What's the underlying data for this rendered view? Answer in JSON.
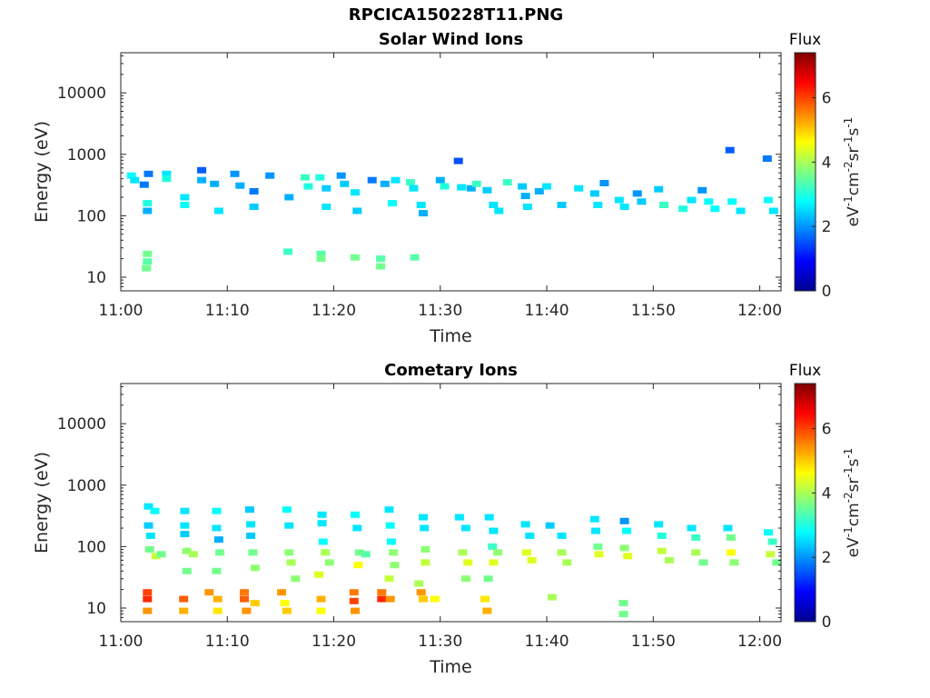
{
  "figure": {
    "title": "RPCICA150228T11.PNG"
  },
  "colormap": [
    "#00008f",
    "#0000ff",
    "#0080ff",
    "#00ffff",
    "#80ff80",
    "#ffff00",
    "#ff8000",
    "#ff0000",
    "#800000"
  ],
  "chart_data": [
    {
      "type": "heatmap",
      "title": "Solar Wind Ions",
      "xlabel": "Time",
      "ylabel": "Energy (eV)",
      "x_ticks": [
        "11:00",
        "11:10",
        "11:20",
        "11:30",
        "11:40",
        "11:50",
        "12:00"
      ],
      "y_ticks": [
        "10",
        "100",
        "1000",
        "10000"
      ],
      "y_scale": "log",
      "y_range": [
        6,
        45000
      ],
      "x_range_minutes": [
        0,
        62
      ],
      "colorbar": {
        "title": "Flux",
        "label": "eV-1cm-2sr-1s-1",
        "ticks": [
          "0",
          "2",
          "4",
          "6"
        ],
        "range": [
          0,
          7.4
        ]
      },
      "cells": [
        [
          1.0,
          450,
          2.8
        ],
        [
          1.3,
          380,
          2.6
        ],
        [
          2.2,
          320,
          1.8
        ],
        [
          2.5,
          160,
          3.0
        ],
        [
          2.5,
          120,
          2.2
        ],
        [
          2.6,
          480,
          1.8
        ],
        [
          4.3,
          480,
          2.6
        ],
        [
          4.3,
          400,
          3.0
        ],
        [
          6.0,
          200,
          2.6
        ],
        [
          6.0,
          150,
          2.8
        ],
        [
          7.6,
          550,
          1.6
        ],
        [
          7.6,
          380,
          2.2
        ],
        [
          8.8,
          330,
          2.2
        ],
        [
          9.2,
          120,
          2.6
        ],
        [
          10.7,
          480,
          2.0
        ],
        [
          11.2,
          310,
          2.2
        ],
        [
          12.5,
          250,
          1.8
        ],
        [
          12.5,
          140,
          2.4
        ],
        [
          14.0,
          450,
          2.0
        ],
        [
          15.8,
          200,
          2.2
        ],
        [
          17.3,
          420,
          3.2
        ],
        [
          17.6,
          300,
          3.0
        ],
        [
          18.7,
          420,
          3.0
        ],
        [
          19.3,
          280,
          2.4
        ],
        [
          19.3,
          140,
          2.6
        ],
        [
          20.7,
          450,
          2.0
        ],
        [
          21.0,
          330,
          2.4
        ],
        [
          22.0,
          240,
          2.6
        ],
        [
          22.2,
          120,
          2.4
        ],
        [
          23.6,
          380,
          1.8
        ],
        [
          24.8,
          330,
          2.2
        ],
        [
          25.5,
          160,
          2.8
        ],
        [
          25.8,
          380,
          2.6
        ],
        [
          27.2,
          350,
          3.2
        ],
        [
          27.5,
          280,
          2.6
        ],
        [
          28.2,
          150,
          2.6
        ],
        [
          28.4,
          110,
          2.2
        ],
        [
          30.0,
          380,
          2.2
        ],
        [
          30.4,
          300,
          3.0
        ],
        [
          31.7,
          780,
          1.5
        ],
        [
          32.0,
          290,
          2.6
        ],
        [
          32.9,
          280,
          2.2
        ],
        [
          33.4,
          330,
          3.2
        ],
        [
          34.4,
          260,
          2.4
        ],
        [
          35.0,
          150,
          2.6
        ],
        [
          35.5,
          120,
          2.6
        ],
        [
          36.3,
          350,
          3.2
        ],
        [
          37.7,
          300,
          2.4
        ],
        [
          38.0,
          210,
          2.2
        ],
        [
          38.2,
          140,
          2.6
        ],
        [
          39.3,
          250,
          2.2
        ],
        [
          40.0,
          300,
          2.6
        ],
        [
          41.4,
          150,
          2.4
        ],
        [
          43.0,
          280,
          2.6
        ],
        [
          44.5,
          230,
          2.4
        ],
        [
          44.8,
          150,
          2.6
        ],
        [
          45.4,
          340,
          2.0
        ],
        [
          46.8,
          180,
          2.6
        ],
        [
          47.3,
          140,
          2.6
        ],
        [
          48.5,
          230,
          2.0
        ],
        [
          48.9,
          170,
          2.4
        ],
        [
          50.5,
          270,
          2.4
        ],
        [
          51.0,
          150,
          3.2
        ],
        [
          52.8,
          130,
          3.0
        ],
        [
          53.6,
          180,
          2.6
        ],
        [
          54.6,
          260,
          2.0
        ],
        [
          55.2,
          170,
          2.8
        ],
        [
          55.8,
          130,
          2.8
        ],
        [
          57.2,
          1170,
          1.6
        ],
        [
          57.4,
          170,
          2.8
        ],
        [
          58.2,
          120,
          2.6
        ],
        [
          60.7,
          850,
          1.8
        ],
        [
          60.8,
          180,
          2.8
        ],
        [
          61.3,
          120,
          2.6
        ],
        [
          2.5,
          24,
          3.6
        ],
        [
          2.5,
          18,
          3.4
        ],
        [
          2.4,
          14,
          3.6
        ],
        [
          15.7,
          26,
          3.2
        ],
        [
          18.8,
          24,
          3.4
        ],
        [
          18.8,
          20,
          3.6
        ],
        [
          22.0,
          21,
          3.6
        ],
        [
          24.4,
          20,
          3.4
        ],
        [
          24.4,
          15,
          3.6
        ],
        [
          27.6,
          21,
          3.4
        ]
      ]
    },
    {
      "type": "heatmap",
      "title": "Cometary Ions",
      "xlabel": "Time",
      "ylabel": "Energy (eV)",
      "x_ticks": [
        "11:00",
        "11:10",
        "11:20",
        "11:30",
        "11:40",
        "11:50",
        "12:00"
      ],
      "y_ticks": [
        "10",
        "100",
        "1000",
        "10000"
      ],
      "y_scale": "log",
      "y_range": [
        6,
        45000
      ],
      "x_range_minutes": [
        0,
        62
      ],
      "colorbar": {
        "title": "Flux",
        "label": "eV-1cm-2sr-1s-1",
        "ticks": [
          "0",
          "2",
          "4",
          "6"
        ],
        "range": [
          0,
          7.4
        ]
      },
      "cells": [
        [
          2.6,
          450,
          2.6
        ],
        [
          3.2,
          380,
          2.8
        ],
        [
          2.6,
          220,
          2.4
        ],
        [
          2.8,
          150,
          2.6
        ],
        [
          2.7,
          90,
          3.6
        ],
        [
          3.3,
          70,
          4.2
        ],
        [
          3.8,
          75,
          3.6
        ],
        [
          6.0,
          380,
          2.6
        ],
        [
          6.0,
          220,
          2.6
        ],
        [
          6.0,
          160,
          2.4
        ],
        [
          6.2,
          85,
          3.8
        ],
        [
          6.8,
          75,
          4.0
        ],
        [
          6.2,
          40,
          3.6
        ],
        [
          9.0,
          380,
          2.8
        ],
        [
          9.0,
          200,
          2.6
        ],
        [
          9.2,
          130,
          2.2
        ],
        [
          9.3,
          80,
          3.6
        ],
        [
          9.0,
          40,
          3.6
        ],
        [
          12.1,
          400,
          2.4
        ],
        [
          12.2,
          230,
          2.6
        ],
        [
          12.2,
          150,
          2.4
        ],
        [
          12.4,
          80,
          3.6
        ],
        [
          12.6,
          45,
          3.8
        ],
        [
          15.6,
          400,
          2.8
        ],
        [
          15.8,
          220,
          2.6
        ],
        [
          15.8,
          80,
          3.8
        ],
        [
          16.0,
          55,
          4.0
        ],
        [
          16.4,
          30,
          3.8
        ],
        [
          18.9,
          330,
          2.6
        ],
        [
          18.9,
          240,
          2.6
        ],
        [
          19.0,
          120,
          2.8
        ],
        [
          19.2,
          80,
          4.0
        ],
        [
          19.6,
          55,
          3.8
        ],
        [
          18.6,
          35,
          4.4
        ],
        [
          22.0,
          330,
          2.8
        ],
        [
          22.2,
          200,
          2.6
        ],
        [
          22.4,
          80,
          3.6
        ],
        [
          22.3,
          50,
          4.6
        ],
        [
          23.0,
          75,
          3.4
        ],
        [
          25.2,
          400,
          2.6
        ],
        [
          25.3,
          220,
          2.8
        ],
        [
          25.4,
          120,
          2.8
        ],
        [
          25.6,
          80,
          3.8
        ],
        [
          25.7,
          50,
          3.8
        ],
        [
          25.2,
          30,
          4.2
        ],
        [
          28.4,
          300,
          2.6
        ],
        [
          28.5,
          200,
          2.6
        ],
        [
          28.6,
          90,
          3.8
        ],
        [
          28.6,
          55,
          4.2
        ],
        [
          28.0,
          25,
          4.0
        ],
        [
          31.8,
          300,
          2.6
        ],
        [
          32.4,
          200,
          2.6
        ],
        [
          32.1,
          80,
          4.0
        ],
        [
          32.6,
          55,
          4.4
        ],
        [
          32.4,
          30,
          3.8
        ],
        [
          34.6,
          300,
          2.6
        ],
        [
          35.0,
          180,
          2.6
        ],
        [
          34.9,
          100,
          3.2
        ],
        [
          35.4,
          80,
          3.8
        ],
        [
          35.0,
          55,
          4.4
        ],
        [
          34.5,
          30,
          3.6
        ],
        [
          38.0,
          230,
          2.6
        ],
        [
          38.4,
          150,
          2.6
        ],
        [
          38.1,
          80,
          4.4
        ],
        [
          38.6,
          60,
          4.4
        ],
        [
          40.3,
          220,
          2.4
        ],
        [
          41.4,
          150,
          2.6
        ],
        [
          41.4,
          80,
          4.0
        ],
        [
          41.9,
          55,
          4.0
        ],
        [
          44.5,
          280,
          2.6
        ],
        [
          44.6,
          180,
          2.6
        ],
        [
          44.8,
          100,
          3.6
        ],
        [
          44.9,
          75,
          4.4
        ],
        [
          47.3,
          260,
          2.0
        ],
        [
          47.5,
          180,
          2.8
        ],
        [
          47.3,
          95,
          3.8
        ],
        [
          47.6,
          70,
          4.4
        ],
        [
          50.5,
          230,
          2.6
        ],
        [
          50.8,
          150,
          3.0
        ],
        [
          50.8,
          85,
          4.2
        ],
        [
          51.5,
          60,
          4.0
        ],
        [
          53.6,
          200,
          2.6
        ],
        [
          54.0,
          140,
          3.2
        ],
        [
          54.0,
          80,
          4.0
        ],
        [
          54.7,
          55,
          3.6
        ],
        [
          57.0,
          200,
          2.6
        ],
        [
          57.3,
          140,
          3.6
        ],
        [
          57.3,
          80,
          4.6
        ],
        [
          57.6,
          55,
          3.8
        ],
        [
          60.8,
          170,
          2.8
        ],
        [
          61.2,
          120,
          3.2
        ],
        [
          61.0,
          75,
          4.2
        ],
        [
          61.6,
          55,
          3.6
        ],
        [
          2.5,
          18,
          6.0
        ],
        [
          2.5,
          14,
          6.2
        ],
        [
          2.5,
          9,
          5.4
        ],
        [
          5.9,
          14,
          5.8
        ],
        [
          5.9,
          9,
          5.2
        ],
        [
          8.3,
          18,
          5.4
        ],
        [
          9.1,
          14,
          5.2
        ],
        [
          9.1,
          9,
          4.8
        ],
        [
          11.6,
          18,
          5.6
        ],
        [
          11.6,
          14,
          5.8
        ],
        [
          11.8,
          9,
          5.4
        ],
        [
          12.6,
          12,
          5.0
        ],
        [
          15.1,
          18,
          5.4
        ],
        [
          15.4,
          12,
          4.6
        ],
        [
          15.6,
          9,
          5.0
        ],
        [
          18.8,
          14,
          5.2
        ],
        [
          18.8,
          9,
          4.6
        ],
        [
          21.9,
          18,
          5.6
        ],
        [
          21.9,
          13,
          6.0
        ],
        [
          22.0,
          9,
          5.4
        ],
        [
          24.5,
          18,
          5.6
        ],
        [
          24.5,
          14,
          6.2
        ],
        [
          25.3,
          14,
          5.4
        ],
        [
          28.2,
          18,
          5.4
        ],
        [
          28.4,
          14,
          5.0
        ],
        [
          29.5,
          14,
          4.6
        ],
        [
          34.2,
          14,
          4.8
        ],
        [
          34.4,
          9,
          5.2
        ],
        [
          40.5,
          15,
          4.0
        ],
        [
          47.2,
          12,
          3.6
        ],
        [
          47.2,
          8,
          3.6
        ]
      ]
    }
  ]
}
